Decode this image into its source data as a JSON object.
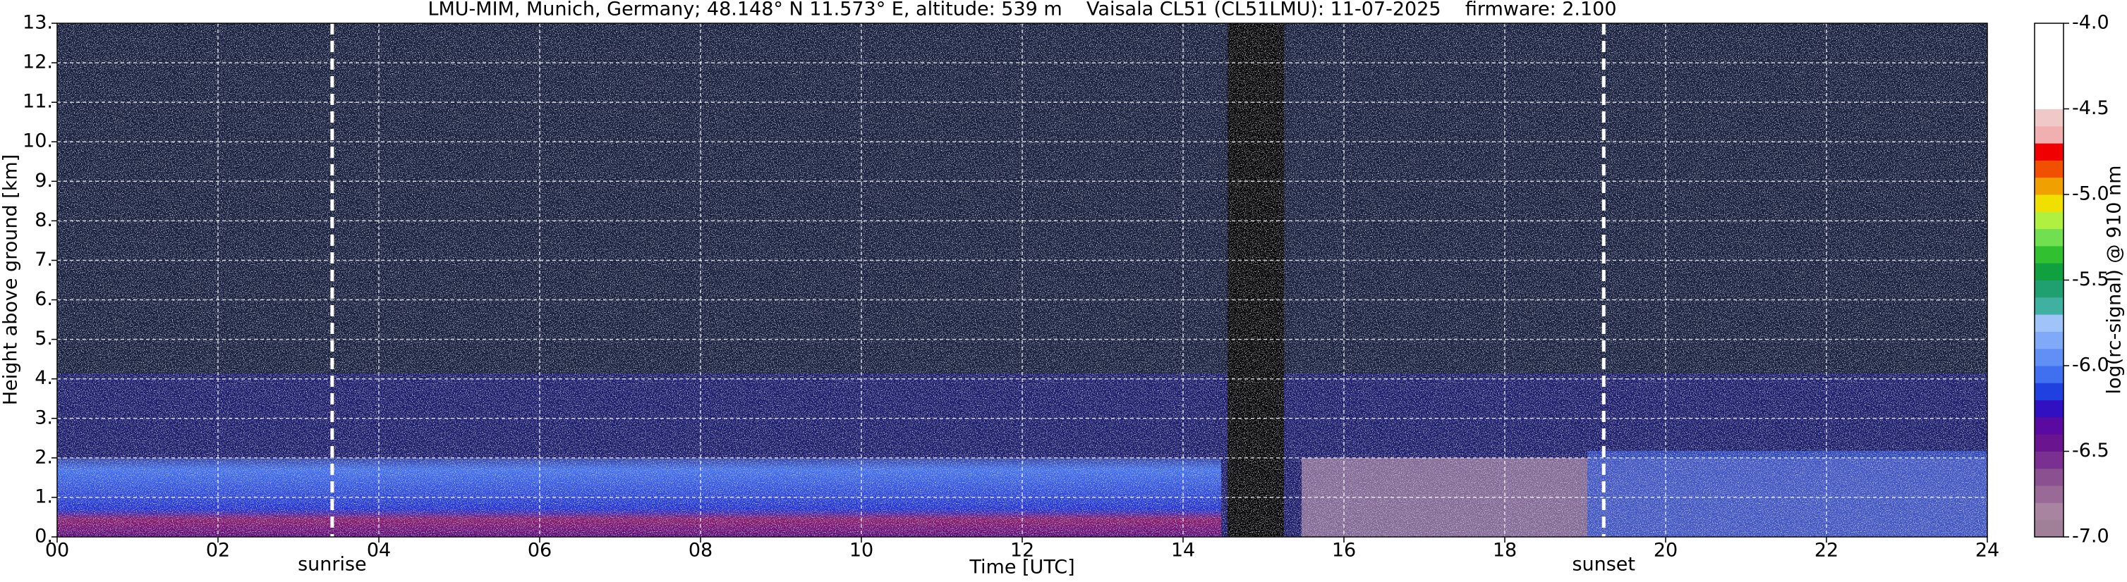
{
  "chart_data": {
    "type": "heatmap",
    "title": "LMU-MIM, Munich, Germany; 48.148° N 11.573° E, altitude: 539 m    Vaisala CL51 (CL51LMU): 11-07-2025    firmware: 2.100",
    "x_label": "Time [UTC]",
    "y_label": "Height above ground [km]",
    "xlim": [
      0,
      24
    ],
    "xticks": [
      {
        "value": 0,
        "label": "00"
      },
      {
        "value": 2,
        "label": "02"
      },
      {
        "value": 4,
        "label": "04"
      },
      {
        "value": 6,
        "label": "06"
      },
      {
        "value": 8,
        "label": "08"
      },
      10,
      12,
      14,
      16,
      18,
      20,
      22,
      24
    ],
    "ylim": [
      0,
      13
    ],
    "yticks": [
      {
        "value": 0,
        "label": "0."
      },
      {
        "value": 1,
        "label": "1."
      },
      {
        "value": 2,
        "label": "2."
      },
      {
        "value": 3,
        "label": "3."
      },
      {
        "value": 4,
        "label": "4."
      },
      {
        "value": 5,
        "label": "5."
      },
      {
        "value": 6,
        "label": "6."
      },
      {
        "value": 7,
        "label": "7."
      },
      {
        "value": 8,
        "label": "8."
      },
      {
        "value": 9,
        "label": "9."
      },
      {
        "value": 10,
        "label": "10."
      },
      {
        "value": 11,
        "label": "11."
      },
      {
        "value": 12,
        "label": "12."
      },
      {
        "value": 13,
        "label": "13."
      }
    ],
    "grid": true,
    "annotations": [
      {
        "text": "sunrise",
        "x": 3.42
      },
      {
        "text": "sunset",
        "x": 19.23
      }
    ],
    "colorbar": {
      "label": "log(rc-signal) @ 910 nm",
      "lim": [
        -7,
        -4
      ],
      "ticks": [
        {
          "value": -4,
          "label": "-4.0"
        },
        -4.5,
        {
          "value": -5,
          "label": "-5.0"
        },
        -5.5,
        {
          "value": -6,
          "label": "-6.0"
        },
        -6.5,
        {
          "value": -7,
          "label": "-7.0"
        }
      ],
      "colors": [
        "#a08098",
        "#a884a0",
        "#9a6a96",
        "#8a5090",
        "#7a3090",
        "#6a1490",
        "#5a0aa0",
        "#3010c0",
        "#2040e0",
        "#4070f0",
        "#6090f5",
        "#80aaf8",
        "#a0c4fa",
        "#40b0a0",
        "#20a070",
        "#10a040",
        "#30c030",
        "#70e050",
        "#b0f040",
        "#f0e000",
        "#f0a000",
        "#f05000",
        "#f00000",
        "#f0b0b0",
        "#f0c8c8",
        "#ffffff",
        "#ffffff",
        "#ffffff",
        "#ffffff",
        "#ffffff"
      ]
    }
  }
}
